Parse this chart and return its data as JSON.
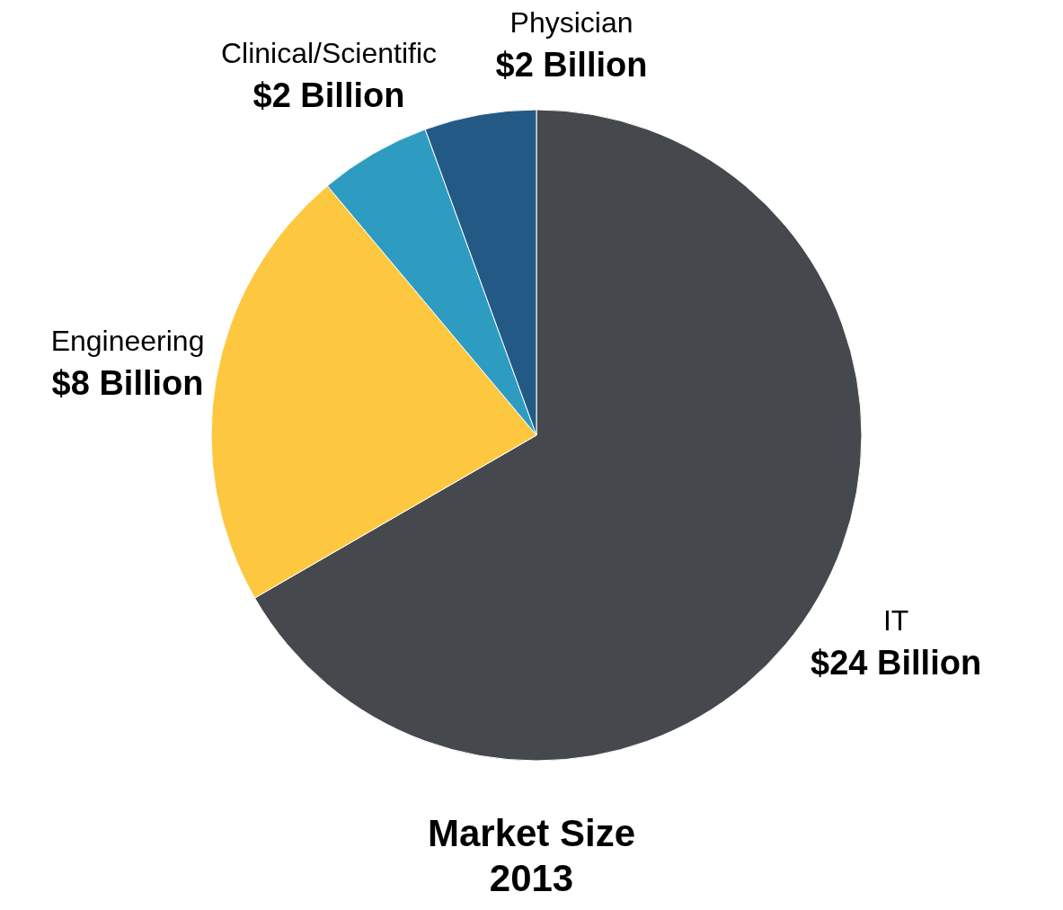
{
  "chart_data": {
    "type": "pie",
    "title": "Market Size",
    "subtitle": "2013",
    "categories": [
      "IT",
      "Engineering",
      "Clinical/Scientific",
      "Physician"
    ],
    "values": [
      24,
      8,
      2,
      2
    ],
    "value_labels": [
      "$24 Billion",
      "$8 Billion",
      "$2 Billion",
      "$2 Billion"
    ],
    "colors": [
      "#45484c",
      "#fdc840",
      "#2e9cc0",
      "#235a85"
    ]
  }
}
